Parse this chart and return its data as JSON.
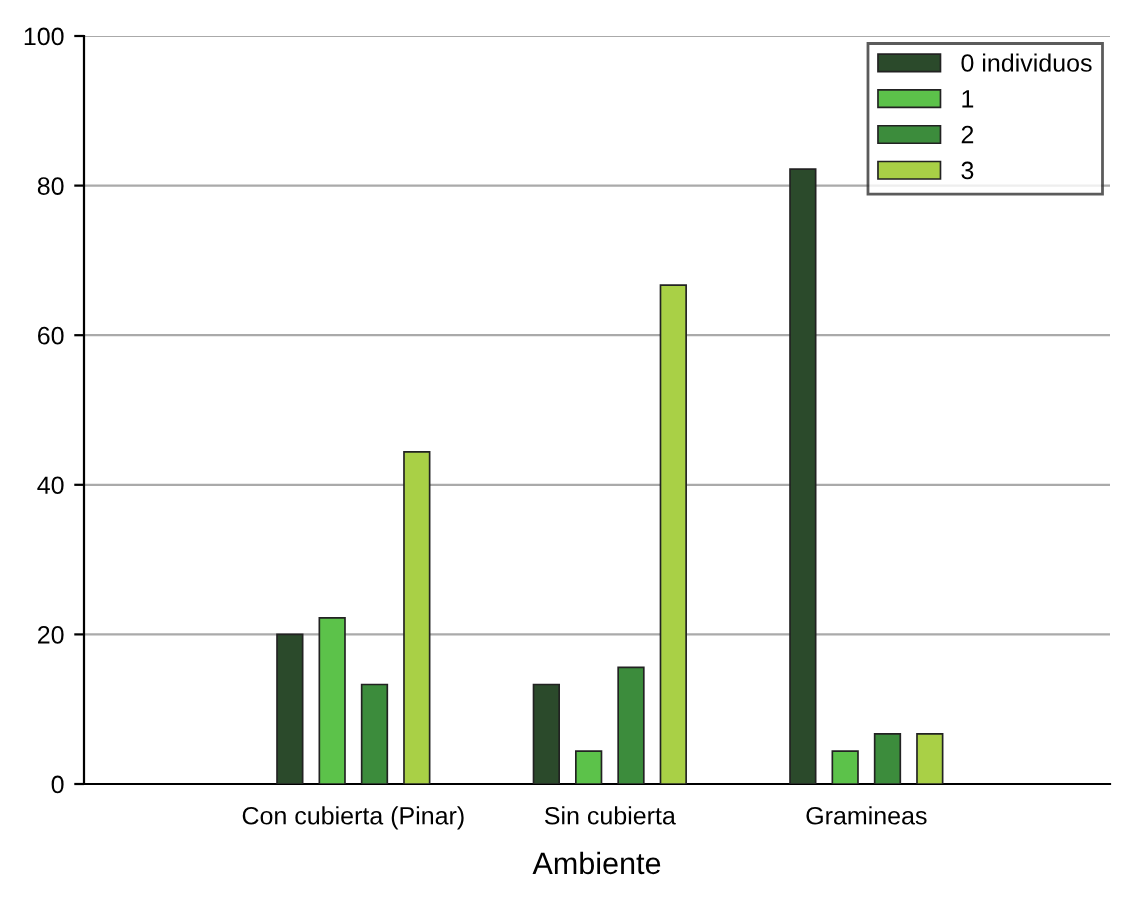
{
  "chart_data": {
    "type": "bar",
    "xlabel": "Ambiente",
    "categories": [
      "Con cubierta (Pinar)",
      "Sin cubierta",
      "Gramineas"
    ],
    "series": [
      {
        "name": "0 individuos",
        "color": "#2b4a2b",
        "values": [
          20,
          13.3,
          82.2
        ]
      },
      {
        "name": "1",
        "color": "#5cc24a",
        "values": [
          22.2,
          4.4,
          4.4
        ]
      },
      {
        "name": "2",
        "color": "#3c8c3c",
        "values": [
          13.3,
          15.6,
          6.7
        ]
      },
      {
        "name": "3",
        "color": "#a9d046",
        "values": [
          44.4,
          66.7,
          6.7
        ]
      }
    ],
    "ylim": [
      0,
      100
    ],
    "yticks": [
      0,
      20,
      40,
      60,
      80,
      100
    ],
    "grid": "y",
    "legend": "top right"
  }
}
